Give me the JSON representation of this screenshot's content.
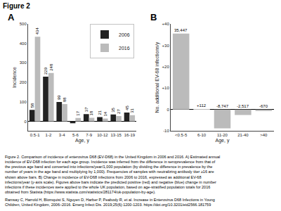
{
  "title": "Figure 2",
  "annotations": [
    "Figure 2. Comparison of incidence of enterovirus D68 (EV-D68) in the United Kingdom in 2006 and 2016. A) Estimated annual incidence of EV-D68 infection for each age group. Incidence was inferred from the difference in seroprevalence from that of the previous age band and converted into infections/year/1,000 population (by dividing the difference in prevalence by the number of years in the age band and multiplying by 1,000). Frequencies of samples with neutralizing antibody titer ≥16 are shown above bars. B) Change in incidence of EV-D68 infections from 2006 to 2016, expressed as additional EV-68 infections/year (y-axis scale). Figures above bars indicate the predicted positive (red) and negative (blue) change in number infections if these incidences were applied to the whole UK population, based on age-stratified population totals for 2016 obtained from Statista (https://www.statista.com/statistics/281174/uk-population-by-age).",
    "Ramsay C, Harrold H, Blomquist S, Nguyen D, Harber P, Peabody R, et al. Increase in Enterovirus D68 Infections in Young Children, United Kingdom, 2006–2016. Emerg Infect Dis. 2019;25(6):1200-1203. https://doi.org/10.3201/eid2566.181759"
  ],
  "chart_data": [
    {
      "type": "bar",
      "title": "A",
      "categories": [
        "0.5-1",
        "1-2",
        "3-4",
        "5-6",
        "7-9",
        "10-12",
        "13-15",
        "16-19"
      ],
      "series": [
        {
          "name": "2006",
          "color": "#222222",
          "values": [
            58,
            229,
            99,
            -10,
            37,
            21,
            35,
            45
          ],
          "value_labels": [
            "58",
            "229",
            "99",
            null,
            "37",
            "21",
            "35",
            "45"
          ],
          "data_labels": true
        },
        {
          "name": "2016",
          "color": "#bbbbbb",
          "values": [
            434,
            248,
            88,
            17,
            18,
            14,
            27,
            31
          ],
          "data_labels": true
        }
      ],
      "xlabel": "Age, y",
      "ylabel": "Incidence",
      "ylim": [
        -50,
        500
      ],
      "yticks": [
        0,
        100,
        200,
        300,
        400,
        500
      ],
      "legend": "upper right",
      "grid": false
    },
    {
      "type": "bar",
      "title": "B",
      "categories": [
        "<0.5-5",
        "6-10",
        "11-20",
        "21-40",
        ">40"
      ],
      "values": [
        35.447,
        0.112,
        -8.747,
        -2.517,
        -0.67
      ],
      "value_labels": [
        "35,447",
        "+112",
        "-8,747",
        "-2,517",
        "-670"
      ],
      "data_labels": true,
      "color": "#bbbbbb",
      "xlabel": "Age, y",
      "ylabel": "No. additional EV-68 infections/y",
      "ylim": [
        -10,
        40
      ],
      "yticks": [
        -10,
        0,
        {
          "value": 10,
          "label": "+10"
        },
        {
          "value": 20,
          "label": "+20"
        },
        {
          "value": 30,
          "label": "+30"
        },
        {
          "value": 40,
          "label": "+40"
        }
      ],
      "grid": false
    }
  ]
}
